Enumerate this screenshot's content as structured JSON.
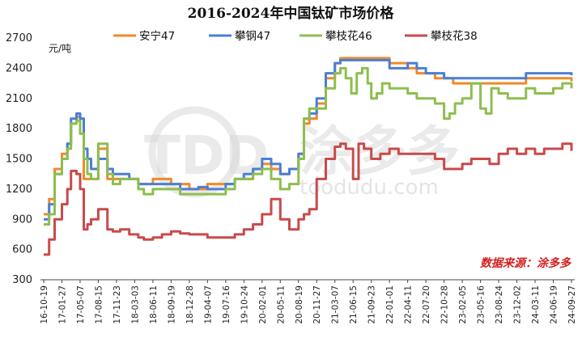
{
  "chart_data": {
    "type": "line",
    "title": "2016-2024年中国钛矿市场价格",
    "ylabel": "元/吨",
    "ylim": [
      300,
      2700
    ],
    "yticks": [
      300,
      600,
      900,
      1200,
      1500,
      1800,
      2100,
      2400,
      2700
    ],
    "grid": false,
    "legend_position": "top",
    "source": "数据来源：涂多多",
    "watermark": {
      "logo": "TDD",
      "brand": "涂多多",
      "site": "toodudu.com"
    },
    "x_tick_labels": [
      "16-10-19",
      "17-01-27",
      "17-05-07",
      "17-08-15",
      "17-11-23",
      "18-03-03",
      "18-06-11",
      "18-09-19",
      "18-12-28",
      "19-04-07",
      "19-07-16",
      "19-10-24",
      "20-02-01",
      "20-05-11",
      "20-08-19",
      "20-11-27",
      "21-03-07",
      "21-06-15",
      "21-09-23",
      "22-01-01",
      "22-04-11",
      "22-07-20",
      "22-10-28",
      "23-02-05",
      "23-05-16",
      "23-08-24",
      "23-12-02",
      "24-03-11",
      "24-06-19",
      "24-09-27"
    ],
    "series": [
      {
        "name": "安宁47",
        "color": "#f0892b",
        "x": [
          0,
          0.3,
          0.6,
          1.0,
          1.3,
          1.5,
          1.8,
          2.0,
          2.2,
          2.4,
          2.5,
          2.6,
          3.0,
          3.5,
          3.8,
          4.2,
          4.7,
          5.2,
          5.5,
          6.0,
          6.5,
          7.0,
          7.5,
          8.0,
          8.5,
          9.0,
          9.5,
          10.0,
          10.5,
          11.0,
          11.5,
          12.0,
          12.5,
          13.0,
          13.5,
          14.0,
          14.3,
          14.6,
          15.0,
          15.5,
          16.0,
          16.3,
          16.6,
          17.0,
          17.5,
          18.0,
          18.5,
          19.0,
          19.5,
          20.0,
          20.5,
          21.0,
          21.5,
          22.0,
          22.5,
          23.0,
          23.5,
          24.0,
          24.5,
          25.0,
          25.5,
          26.0,
          26.5,
          27.0,
          27.5,
          28.0,
          28.5,
          29.0
        ],
        "y": [
          950,
          1100,
          1400,
          1550,
          1650,
          1850,
          1920,
          1900,
          1300,
          1300,
          1300,
          1300,
          1600,
          1300,
          1300,
          1300,
          1300,
          1250,
          1250,
          1300,
          1300,
          1250,
          1250,
          1200,
          1200,
          1250,
          1250,
          1250,
          1300,
          1300,
          1400,
          1450,
          1400,
          1350,
          1400,
          1550,
          1850,
          1900,
          2050,
          2300,
          2450,
          2500,
          2500,
          2500,
          2500,
          2500,
          2500,
          2450,
          2450,
          2400,
          2350,
          2350,
          2300,
          2300,
          2250,
          2250,
          2250,
          2250,
          2250,
          2250,
          2250,
          2250,
          2300,
          2300,
          2300,
          2300,
          2300,
          2270
        ]
      },
      {
        "name": "攀钢47",
        "color": "#4a7fd6",
        "x": [
          0,
          0.3,
          0.6,
          1.0,
          1.3,
          1.5,
          1.8,
          2.0,
          2.2,
          2.4,
          2.6,
          3.0,
          3.5,
          3.8,
          4.2,
          4.7,
          5.2,
          5.5,
          6.0,
          6.5,
          7.0,
          7.5,
          8.0,
          8.5,
          9.0,
          9.5,
          10.0,
          10.5,
          11.0,
          11.5,
          12.0,
          12.5,
          13.0,
          13.5,
          14.0,
          14.3,
          14.6,
          15.0,
          15.5,
          16.0,
          16.3,
          16.6,
          17.0,
          17.5,
          18.0,
          18.5,
          19.0,
          19.5,
          20.0,
          20.5,
          21.0,
          21.5,
          22.0,
          22.5,
          23.0,
          23.5,
          24.0,
          24.5,
          25.0,
          25.5,
          26.0,
          26.5,
          27.0,
          27.5,
          28.0,
          28.5,
          29.0
        ],
        "y": [
          900,
          1050,
          1350,
          1500,
          1650,
          1900,
          1950,
          1900,
          1600,
          1500,
          1400,
          1500,
          1400,
          1350,
          1350,
          1300,
          1250,
          1250,
          1250,
          1250,
          1250,
          1200,
          1200,
          1220,
          1200,
          1200,
          1250,
          1300,
          1350,
          1400,
          1500,
          1450,
          1350,
          1400,
          1550,
          1900,
          1950,
          2100,
          2350,
          2450,
          2480,
          2480,
          2480,
          2480,
          2480,
          2480,
          2400,
          2400,
          2450,
          2400,
          2350,
          2350,
          2300,
          2300,
          2300,
          2300,
          2300,
          2300,
          2300,
          2300,
          2300,
          2350,
          2350,
          2350,
          2350,
          2350,
          2330
        ]
      },
      {
        "name": "攀枝花46",
        "color": "#8dbe4f",
        "x": [
          0,
          0.3,
          0.6,
          1.0,
          1.3,
          1.5,
          1.8,
          2.0,
          2.2,
          2.4,
          2.6,
          3.0,
          3.5,
          3.8,
          4.2,
          4.7,
          5.2,
          5.5,
          6.0,
          6.5,
          7.0,
          7.5,
          8.0,
          8.5,
          9.0,
          9.5,
          10.0,
          10.5,
          11.0,
          11.5,
          12.0,
          12.5,
          13.0,
          13.5,
          14.0,
          14.3,
          14.6,
          15.0,
          15.5,
          16.0,
          16.3,
          16.6,
          16.9,
          17.2,
          17.5,
          17.8,
          18.0,
          18.3,
          18.6,
          19.0,
          19.5,
          20.0,
          20.5,
          21.0,
          21.5,
          22.0,
          22.3,
          22.6,
          23.0,
          23.5,
          24.0,
          24.3,
          24.6,
          25.0,
          25.5,
          26.0,
          26.5,
          27.0,
          27.5,
          28.0,
          28.5,
          29.0
        ],
        "y": [
          850,
          950,
          1350,
          1500,
          1600,
          1850,
          1880,
          1750,
          1500,
          1350,
          1300,
          1650,
          1350,
          1250,
          1300,
          1300,
          1200,
          1150,
          1200,
          1200,
          1200,
          1150,
          1150,
          1150,
          1150,
          1150,
          1200,
          1300,
          1300,
          1350,
          1400,
          1300,
          1200,
          1250,
          1500,
          1900,
          2000,
          2000,
          2200,
          2350,
          2400,
          2300,
          2150,
          2350,
          2400,
          2250,
          2100,
          2150,
          2250,
          2200,
          2200,
          2150,
          2100,
          2100,
          2050,
          1900,
          1950,
          2050,
          2100,
          2250,
          2000,
          1950,
          2200,
          2150,
          2100,
          2100,
          2200,
          2150,
          2150,
          2200,
          2250,
          2200
        ]
      },
      {
        "name": "攀枝花38",
        "color": "#c94a4a",
        "x": [
          0,
          0.3,
          0.6,
          1.0,
          1.3,
          1.5,
          1.8,
          2.0,
          2.2,
          2.4,
          2.6,
          3.0,
          3.5,
          3.8,
          4.2,
          4.7,
          5.2,
          5.5,
          6.0,
          6.5,
          7.0,
          7.5,
          8.0,
          8.5,
          9.0,
          9.5,
          10.0,
          10.5,
          11.0,
          11.5,
          12.0,
          12.5,
          13.0,
          13.5,
          14.0,
          14.3,
          14.6,
          15.0,
          15.5,
          16.0,
          16.3,
          16.6,
          17.0,
          17.3,
          17.6,
          18.0,
          18.5,
          19.0,
          19.5,
          20.0,
          20.5,
          21.0,
          21.5,
          22.0,
          22.5,
          23.0,
          23.5,
          24.0,
          24.5,
          25.0,
          25.5,
          26.0,
          26.5,
          27.0,
          27.5,
          28.0,
          28.5,
          29.0
        ],
        "y": [
          550,
          700,
          900,
          1050,
          1200,
          1380,
          1350,
          1200,
          800,
          850,
          900,
          1000,
          800,
          780,
          800,
          750,
          720,
          700,
          720,
          750,
          780,
          760,
          750,
          750,
          720,
          720,
          720,
          750,
          800,
          850,
          950,
          1100,
          900,
          800,
          900,
          950,
          1000,
          1300,
          1500,
          1620,
          1650,
          1600,
          1300,
          1650,
          1600,
          1500,
          1550,
          1600,
          1550,
          1550,
          1550,
          1550,
          1500,
          1400,
          1400,
          1450,
          1500,
          1500,
          1450,
          1550,
          1600,
          1550,
          1600,
          1550,
          1600,
          1600,
          1650,
          1580
        ]
      }
    ]
  }
}
